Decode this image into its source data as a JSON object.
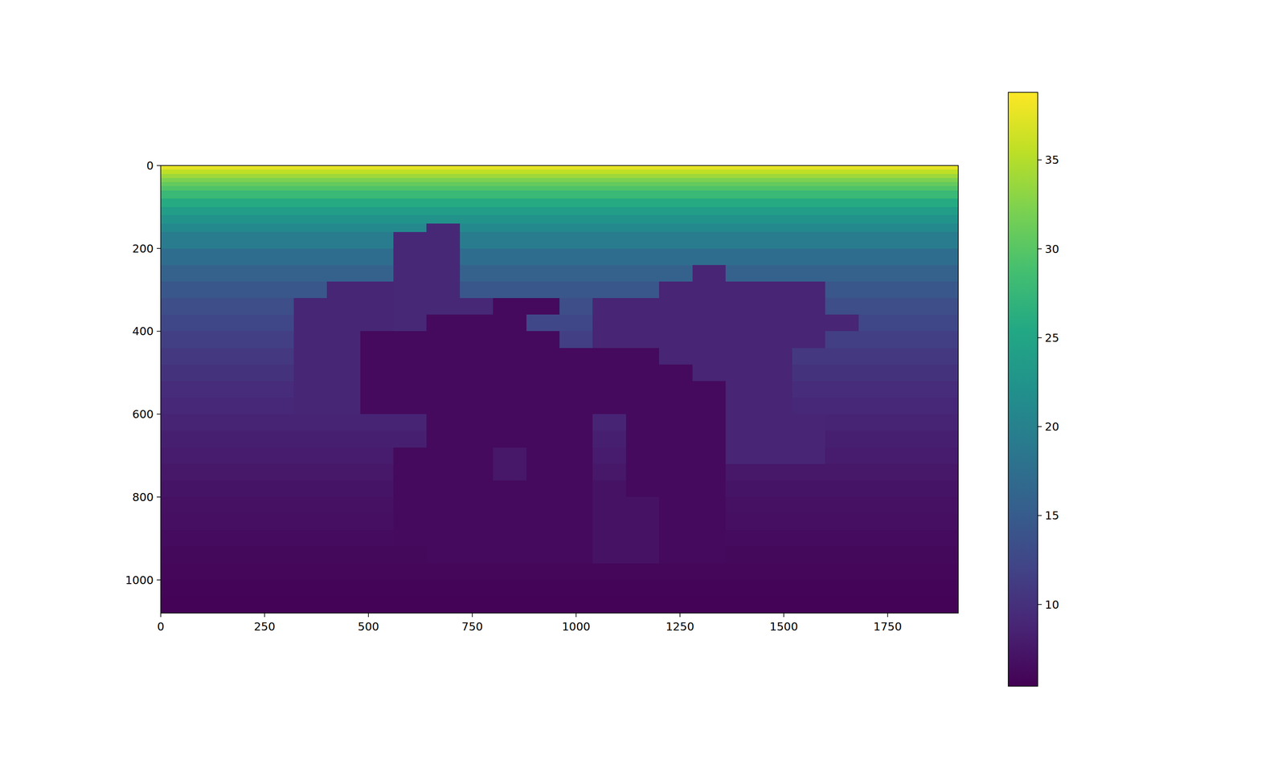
{
  "chart_data": {
    "type": "heatmap",
    "x_bins": [
      0,
      80,
      160,
      240,
      320,
      400,
      480,
      560,
      640,
      720,
      800,
      880,
      960,
      1040,
      1120,
      1200,
      1280,
      1360,
      1440,
      1520,
      1600,
      1680,
      1760,
      1840,
      1920
    ],
    "y_bins": [
      0,
      10,
      20,
      30,
      40,
      50,
      60,
      80,
      100,
      120,
      140,
      160,
      200,
      240,
      280,
      320,
      360,
      400,
      440,
      480,
      520,
      560,
      600,
      640,
      680,
      720,
      760,
      800,
      840,
      880,
      920,
      960,
      1000,
      1040,
      1080
    ],
    "values": [
      [
        37.5,
        37.5,
        37.5,
        37.5,
        37.5,
        37.5,
        37.5,
        37.5,
        37.5,
        37.5,
        37.5,
        37.5,
        37.5,
        37.5,
        37.5,
        37.5,
        37.5,
        37.5,
        37.5,
        37.5,
        37.5,
        37.5,
        37.5,
        37.5
      ],
      [
        35.5,
        35.5,
        35.5,
        35.5,
        35.5,
        35.5,
        35.5,
        35.5,
        35.5,
        35.5,
        35.5,
        35.5,
        35.5,
        35.5,
        35.5,
        35.5,
        35.5,
        35.5,
        35.5,
        35.5,
        35.5,
        35.5,
        35.5,
        35.5
      ],
      [
        33.8,
        33.8,
        33.8,
        33.8,
        33.8,
        33.8,
        33.8,
        33.8,
        33.8,
        33.8,
        33.8,
        33.8,
        33.8,
        33.8,
        33.8,
        33.8,
        33.8,
        33.8,
        33.8,
        33.8,
        33.8,
        33.8,
        33.8,
        33.8
      ],
      [
        32.2,
        32.2,
        32.2,
        32.2,
        32.2,
        32.2,
        32.2,
        32.2,
        32.2,
        32.2,
        32.2,
        32.2,
        32.2,
        32.2,
        32.2,
        32.2,
        32.2,
        32.2,
        32.2,
        32.2,
        32.2,
        32.2,
        32.2,
        32.2
      ],
      [
        30.8,
        30.8,
        30.8,
        30.8,
        30.8,
        30.8,
        30.8,
        30.8,
        30.8,
        30.8,
        30.8,
        30.8,
        30.8,
        30.8,
        30.8,
        30.8,
        30.8,
        30.8,
        30.8,
        30.8,
        30.8,
        30.8,
        30.8,
        30.8
      ],
      [
        29.5,
        29.5,
        29.5,
        29.5,
        29.5,
        29.5,
        29.5,
        29.5,
        29.5,
        29.5,
        29.5,
        29.5,
        29.5,
        29.5,
        29.5,
        29.5,
        29.5,
        29.5,
        29.5,
        29.5,
        29.5,
        29.5,
        29.5,
        29.5
      ],
      [
        27.7,
        27.7,
        27.7,
        27.7,
        27.7,
        27.7,
        27.7,
        27.7,
        27.7,
        27.7,
        27.7,
        27.7,
        27.7,
        27.7,
        27.7,
        27.7,
        27.7,
        27.7,
        27.7,
        27.7,
        27.7,
        27.7,
        27.7,
        27.7
      ],
      [
        25.7,
        25.7,
        25.7,
        25.7,
        25.7,
        25.7,
        25.7,
        25.7,
        25.7,
        25.7,
        25.7,
        25.7,
        25.7,
        25.7,
        25.7,
        25.7,
        25.7,
        25.7,
        25.7,
        25.7,
        25.7,
        25.7,
        25.7,
        25.7
      ],
      [
        23.9,
        23.9,
        23.9,
        23.9,
        23.9,
        23.9,
        23.9,
        23.9,
        23.9,
        23.9,
        23.9,
        23.9,
        23.9,
        23.9,
        23.9,
        23.9,
        23.9,
        23.9,
        23.9,
        23.9,
        23.9,
        23.9,
        23.9,
        23.9
      ],
      [
        22.4,
        22.4,
        22.4,
        22.4,
        22.4,
        22.4,
        22.4,
        22.4,
        22.4,
        22.4,
        22.4,
        22.4,
        22.4,
        22.4,
        22.4,
        22.4,
        22.4,
        22.4,
        22.4,
        22.4,
        22.4,
        22.4,
        22.4,
        22.4
      ],
      [
        21.0,
        21.0,
        21.0,
        21.0,
        21.0,
        21.0,
        21.0,
        21.0,
        9.2,
        21.0,
        21.0,
        21.0,
        21.0,
        21.0,
        21.0,
        21.0,
        21.0,
        21.0,
        21.0,
        21.0,
        21.0,
        21.0,
        21.0,
        21.0
      ],
      [
        19.3,
        19.3,
        19.3,
        19.3,
        19.3,
        19.3,
        19.3,
        9.2,
        9.2,
        19.3,
        19.3,
        19.3,
        19.3,
        19.3,
        19.3,
        19.3,
        19.3,
        19.3,
        19.3,
        19.3,
        19.3,
        19.3,
        19.3,
        19.3
      ],
      [
        17.3,
        17.3,
        17.3,
        17.3,
        17.3,
        17.3,
        17.3,
        9.2,
        9.2,
        17.3,
        17.3,
        17.3,
        17.3,
        17.3,
        17.3,
        17.3,
        17.3,
        17.3,
        17.3,
        17.3,
        17.3,
        17.3,
        17.3,
        17.3
      ],
      [
        15.8,
        15.8,
        15.8,
        15.8,
        15.8,
        15.8,
        15.8,
        9.2,
        9.2,
        15.8,
        15.8,
        15.8,
        15.8,
        15.8,
        15.8,
        15.8,
        8.8,
        15.8,
        15.8,
        15.8,
        15.8,
        15.8,
        15.8,
        15.8
      ],
      [
        14.4,
        14.4,
        14.4,
        14.4,
        14.4,
        9.0,
        9.0,
        9.2,
        9.2,
        14.4,
        14.4,
        14.4,
        14.4,
        14.4,
        14.4,
        8.8,
        8.8,
        8.8,
        8.8,
        8.8,
        14.4,
        14.4,
        14.4,
        14.4
      ],
      [
        13.3,
        13.3,
        13.3,
        13.3,
        9.0,
        9.0,
        9.0,
        9.2,
        9.2,
        9.2,
        6.3,
        6.3,
        13.3,
        8.8,
        8.8,
        8.8,
        8.8,
        8.8,
        8.8,
        8.8,
        13.3,
        13.3,
        13.3,
        13.3
      ],
      [
        12.4,
        12.4,
        12.4,
        12.4,
        9.0,
        9.0,
        9.0,
        9.2,
        6.3,
        6.3,
        6.3,
        12.4,
        12.4,
        8.8,
        8.8,
        8.8,
        8.8,
        8.8,
        8.8,
        8.8,
        8.8,
        12.4,
        12.4,
        12.4
      ],
      [
        11.6,
        11.6,
        11.6,
        11.6,
        9.0,
        9.0,
        6.3,
        6.3,
        6.3,
        6.3,
        6.3,
        6.3,
        11.6,
        8.8,
        8.8,
        8.8,
        8.8,
        8.8,
        8.8,
        8.8,
        11.6,
        11.6,
        11.6,
        11.6
      ],
      [
        10.8,
        10.8,
        10.8,
        10.8,
        9.0,
        9.0,
        6.3,
        6.3,
        6.3,
        6.3,
        6.3,
        6.3,
        6.3,
        6.3,
        6.3,
        8.8,
        8.8,
        8.8,
        8.8,
        10.8,
        10.8,
        10.8,
        10.8,
        10.8
      ],
      [
        10.2,
        10.2,
        10.2,
        10.2,
        9.0,
        9.0,
        6.3,
        6.3,
        6.3,
        6.3,
        6.3,
        6.3,
        6.3,
        6.3,
        6.3,
        6.3,
        8.8,
        8.8,
        8.8,
        10.2,
        10.2,
        10.2,
        10.2,
        10.2
      ],
      [
        9.6,
        9.6,
        9.6,
        9.6,
        9.0,
        9.0,
        6.3,
        6.3,
        6.3,
        6.3,
        6.3,
        6.3,
        6.3,
        6.3,
        6.3,
        6.3,
        6.3,
        8.8,
        8.8,
        9.6,
        9.6,
        9.6,
        9.6,
        9.6
      ],
      [
        9.1,
        9.1,
        9.1,
        9.1,
        9.0,
        9.0,
        6.3,
        6.3,
        6.3,
        6.3,
        6.3,
        6.3,
        6.3,
        6.3,
        6.3,
        6.3,
        6.3,
        8.8,
        8.8,
        9.1,
        9.1,
        9.1,
        9.1,
        9.1
      ],
      [
        8.7,
        8.7,
        8.7,
        8.7,
        8.7,
        8.7,
        8.7,
        8.7,
        6.3,
        6.3,
        6.3,
        6.3,
        6.3,
        8.7,
        6.3,
        6.3,
        6.3,
        8.8,
        8.8,
        8.8,
        8.7,
        8.7,
        8.7,
        8.7
      ],
      [
        8.3,
        8.3,
        8.3,
        8.3,
        8.3,
        8.3,
        8.3,
        8.3,
        6.3,
        6.3,
        6.3,
        6.3,
        6.3,
        8.3,
        6.3,
        6.3,
        6.3,
        8.8,
        8.8,
        8.8,
        8.3,
        8.3,
        8.3,
        8.3
      ],
      [
        7.9,
        7.9,
        7.9,
        7.9,
        7.9,
        7.9,
        7.9,
        6.3,
        6.3,
        6.3,
        7.5,
        6.3,
        6.3,
        7.9,
        6.3,
        6.3,
        6.3,
        8.8,
        8.8,
        8.8,
        7.9,
        7.9,
        7.9,
        7.9
      ],
      [
        7.5,
        7.5,
        7.5,
        7.5,
        7.5,
        7.5,
        7.5,
        6.3,
        6.3,
        6.3,
        7.5,
        6.3,
        6.3,
        7.5,
        6.3,
        6.3,
        6.3,
        7.5,
        7.5,
        7.5,
        7.5,
        7.5,
        7.5,
        7.5
      ],
      [
        7.2,
        7.2,
        7.2,
        7.2,
        7.2,
        7.2,
        7.2,
        6.3,
        6.3,
        6.3,
        6.3,
        6.3,
        6.3,
        7.0,
        6.3,
        6.3,
        6.3,
        7.2,
        7.2,
        7.2,
        7.2,
        7.2,
        7.2,
        7.2
      ],
      [
        6.9,
        6.9,
        6.9,
        6.9,
        6.9,
        6.9,
        6.9,
        6.3,
        6.3,
        6.3,
        6.3,
        6.3,
        6.3,
        7.0,
        7.0,
        6.3,
        6.3,
        6.9,
        6.9,
        6.9,
        6.9,
        6.9,
        6.9,
        6.9
      ],
      [
        6.7,
        6.7,
        6.7,
        6.7,
        6.7,
        6.7,
        6.7,
        6.3,
        6.3,
        6.3,
        6.3,
        6.3,
        6.3,
        7.0,
        7.0,
        6.3,
        6.3,
        6.7,
        6.7,
        6.7,
        6.7,
        6.7,
        6.7,
        6.7
      ],
      [
        6.4,
        6.4,
        6.4,
        6.4,
        6.4,
        6.4,
        6.4,
        6.3,
        6.3,
        6.3,
        6.3,
        6.3,
        6.3,
        7.0,
        7.0,
        6.3,
        6.3,
        6.4,
        6.4,
        6.4,
        6.4,
        6.4,
        6.4,
        6.4
      ],
      [
        6.2,
        6.2,
        6.2,
        6.2,
        6.2,
        6.2,
        6.2,
        6.2,
        6.3,
        6.3,
        6.3,
        6.3,
        6.3,
        7.0,
        7.0,
        6.3,
        6.3,
        6.2,
        6.2,
        6.2,
        6.2,
        6.2,
        6.2,
        6.2
      ],
      [
        6.0,
        6.0,
        6.0,
        6.0,
        6.0,
        6.0,
        6.0,
        6.0,
        6.0,
        6.0,
        6.0,
        6.0,
        6.0,
        6.0,
        6.0,
        6.0,
        6.0,
        6.0,
        6.0,
        6.0,
        6.0,
        6.0,
        6.0,
        6.0
      ],
      [
        5.8,
        5.8,
        5.8,
        5.8,
        5.8,
        5.8,
        5.8,
        5.8,
        5.8,
        5.8,
        5.8,
        5.8,
        5.8,
        5.8,
        5.8,
        5.8,
        5.8,
        5.8,
        5.8,
        5.8,
        5.8,
        5.8,
        5.8,
        5.8
      ],
      [
        5.6,
        5.6,
        5.6,
        5.6,
        5.6,
        5.6,
        5.6,
        5.6,
        5.6,
        5.6,
        5.6,
        5.6,
        5.6,
        5.6,
        5.6,
        5.6,
        5.6,
        5.6,
        5.6,
        5.6,
        5.6,
        5.6,
        5.6,
        5.6
      ]
    ],
    "xlim": [
      0,
      1920
    ],
    "ylim": [
      1080,
      0
    ],
    "xticks": [
      0,
      250,
      500,
      750,
      1000,
      1250,
      1500,
      1750
    ],
    "yticks": [
      0,
      200,
      400,
      600,
      800,
      1000
    ],
    "colorbar": {
      "range": [
        5.4,
        38.8
      ],
      "ticks": [
        10,
        15,
        20,
        25,
        30,
        35
      ]
    }
  }
}
